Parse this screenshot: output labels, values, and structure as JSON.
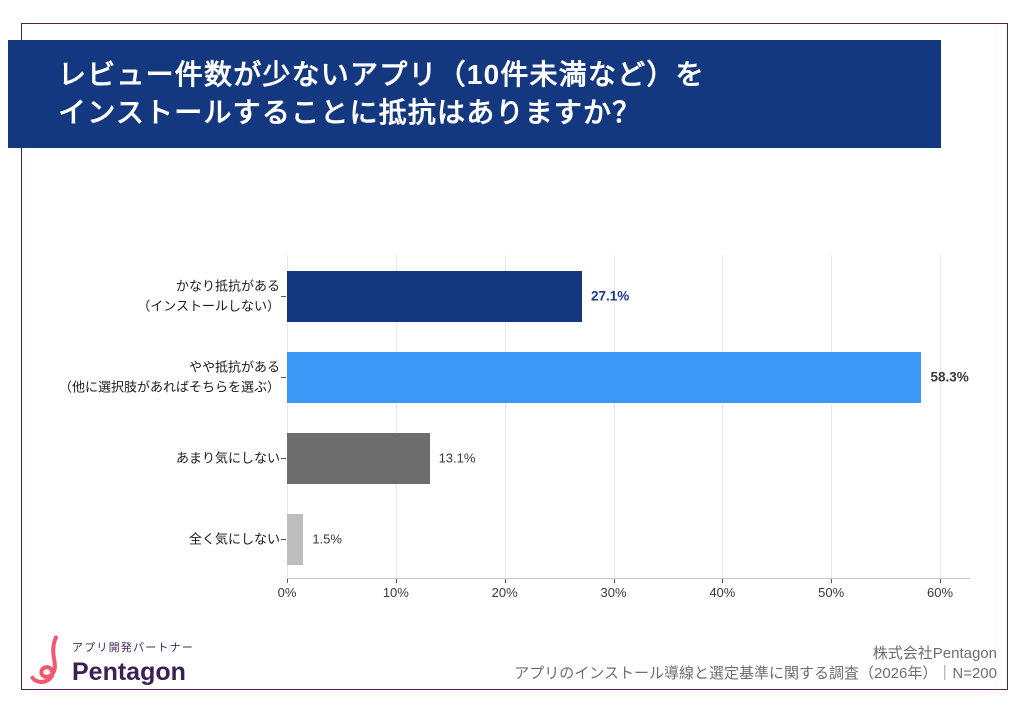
{
  "header": {
    "title_line1": "レビュー件数が少ないアプリ（10件未満など）を",
    "title_line2": "インストールすることに抵抗はありますか？",
    "background": "#14387f"
  },
  "chart_data": {
    "type": "bar",
    "orientation": "horizontal",
    "categories": [
      "かなり抵抗がある\n（インストールしない）",
      "やや抵抗がある\n（他に選択肢があればそちらを選ぶ）",
      "あまり気にしない",
      "全く気にしない"
    ],
    "values": [
      27.1,
      58.3,
      13.1,
      1.5
    ],
    "value_labels": [
      "27.1%",
      "58.3%",
      "13.1%",
      "1.5%"
    ],
    "bar_colors": [
      "#14387f",
      "#3b98f6",
      "#6d6d6d",
      "#bdbdbd"
    ],
    "value_label_colors": [
      "#1a3a90",
      "#3a3a3a",
      "#3a3a3a",
      "#3a3a3a"
    ],
    "value_label_bold": [
      true,
      true,
      false,
      false
    ],
    "x_ticks": [
      "0%",
      "10%",
      "20%",
      "30%",
      "40%",
      "50%",
      "60%"
    ],
    "xlim": [
      0,
      60
    ],
    "grid": true,
    "legend": false
  },
  "footer": {
    "logo": {
      "tagline": "アプリ開発パートナー",
      "brand": "Pentagon",
      "icon": "pentagon-squiggle-icon",
      "brand_color": "#3a2153",
      "icon_color": "#f4566d"
    },
    "source_line1": "株式会社Pentagon",
    "source_line2": "アプリのインストール導線と選定基準に関する調査（2026年）｜N=200"
  }
}
